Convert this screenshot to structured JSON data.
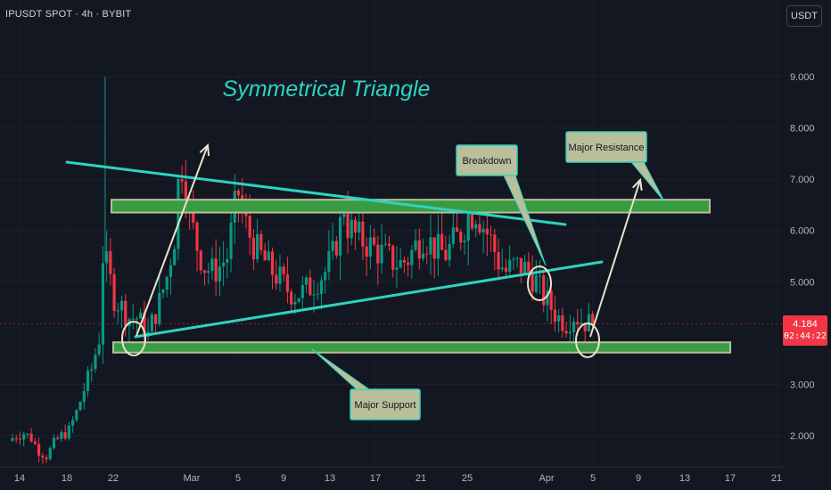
{
  "header": {
    "symbol_info": "IPUSDT SPOT · 4h · BYBIT",
    "currency_label": "USDT"
  },
  "price_badge": {
    "price": "4.184",
    "countdown": "02:44:22"
  },
  "colors": {
    "background": "#131722",
    "up_candle": "#089981",
    "down_candle": "#f23645",
    "trendline": "#2dd4bf",
    "zone_fill": "#3a9b45",
    "annotation_fill": "#b9bf9a",
    "annotation_border": "#2dd4bf",
    "arrow": "#e8e4c8"
  },
  "chart_data": {
    "type": "candlestick",
    "title": "Symmetrical Triangle",
    "x_tick_labels": [
      "14",
      "18",
      "22",
      "Mar",
      "5",
      "9",
      "13",
      "17",
      "21",
      "25",
      "Apr",
      "5",
      "9",
      "13",
      "17",
      "21"
    ],
    "y_tick_labels": [
      "9.000",
      "8.000",
      "7.000",
      "6.000",
      "5.000",
      "4.184",
      "3.000",
      "2.000"
    ],
    "y_ticks": [
      9,
      8,
      7,
      6,
      5,
      3,
      2
    ],
    "y_range": [
      1.5,
      9.5
    ],
    "last_price": 4.184,
    "price_path": [
      [
        0,
        1.9
      ],
      [
        1,
        2.0
      ],
      [
        2,
        2.05
      ],
      [
        3,
        1.95
      ],
      [
        4,
        1.7
      ],
      [
        5,
        1.6
      ],
      [
        6,
        1.85
      ],
      [
        7,
        2.0
      ],
      [
        8,
        2.1
      ],
      [
        9,
        2.45
      ],
      [
        10,
        2.9
      ],
      [
        11,
        3.3
      ],
      [
        12,
        3.9
      ],
      [
        12.3,
        5.6
      ],
      [
        13,
        5.3
      ],
      [
        14,
        4.7
      ],
      [
        15,
        4.5
      ],
      [
        16,
        4.3
      ],
      [
        17,
        4.3
      ],
      [
        18,
        4.1
      ],
      [
        18.5,
        3.95
      ],
      [
        19,
        4.2
      ],
      [
        20,
        4.6
      ],
      [
        21,
        5.1
      ],
      [
        22,
        5.9
      ],
      [
        22.5,
        6.9
      ],
      [
        23,
        7.3
      ],
      [
        23.5,
        6.9
      ],
      [
        24,
        6.3
      ],
      [
        25,
        5.7
      ],
      [
        26,
        5.3
      ],
      [
        27,
        5.2
      ],
      [
        28,
        5.3
      ],
      [
        29,
        5.5
      ],
      [
        30,
        6.4
      ],
      [
        30.6,
        6.8
      ],
      [
        31,
        6.3
      ],
      [
        32,
        5.9
      ],
      [
        33,
        5.6
      ],
      [
        34,
        5.4
      ],
      [
        35,
        5.2
      ],
      [
        36,
        5.05
      ],
      [
        37,
        4.85
      ],
      [
        38,
        4.75
      ],
      [
        39,
        4.8
      ],
      [
        40,
        4.9
      ],
      [
        41,
        5.05
      ],
      [
        42,
        5.2
      ],
      [
        43,
        5.5
      ],
      [
        44,
        6.1
      ],
      [
        44.5,
        6.5
      ],
      [
        45,
        6.1
      ],
      [
        46,
        5.9
      ],
      [
        47,
        5.8
      ],
      [
        48,
        5.7
      ],
      [
        49,
        5.6
      ],
      [
        50,
        5.5
      ],
      [
        51,
        5.4
      ],
      [
        52,
        5.35
      ],
      [
        53,
        5.45
      ],
      [
        54,
        5.7
      ],
      [
        55,
        5.9
      ],
      [
        56,
        5.75
      ],
      [
        57,
        5.6
      ],
      [
        58,
        5.55
      ],
      [
        59,
        5.75
      ],
      [
        60,
        5.95
      ],
      [
        61,
        6.3
      ],
      [
        62,
        6.4
      ],
      [
        63,
        6.1
      ],
      [
        64,
        5.8
      ],
      [
        65,
        5.4
      ],
      [
        66,
        5.2
      ],
      [
        67,
        5.3
      ],
      [
        68,
        5.3
      ],
      [
        69,
        5.2
      ],
      [
        70,
        5.0
      ],
      [
        71,
        4.7
      ],
      [
        72,
        4.5
      ],
      [
        73,
        4.3
      ],
      [
        74,
        4.2
      ],
      [
        75,
        4.35
      ],
      [
        76,
        4.25
      ],
      [
        77,
        4.184
      ]
    ],
    "horizontal_zones": [
      {
        "name": "resistance",
        "top": 6.6,
        "bottom": 6.35
      },
      {
        "name": "support",
        "top": 3.82,
        "bottom": 3.62
      }
    ],
    "trendlines": [
      {
        "name": "upper",
        "from": [
          6.5,
          7.35
        ],
        "to": [
          66,
          6.1
        ]
      },
      {
        "name": "lower",
        "from": [
          18.5,
          3.9
        ],
        "to": [
          67,
          5.4
        ]
      }
    ],
    "annotations": [
      {
        "name": "breakdown",
        "label": "Breakdown"
      },
      {
        "name": "major-resistance",
        "label": "Major Resistance"
      },
      {
        "name": "major-support",
        "label": "Major Support"
      }
    ]
  }
}
